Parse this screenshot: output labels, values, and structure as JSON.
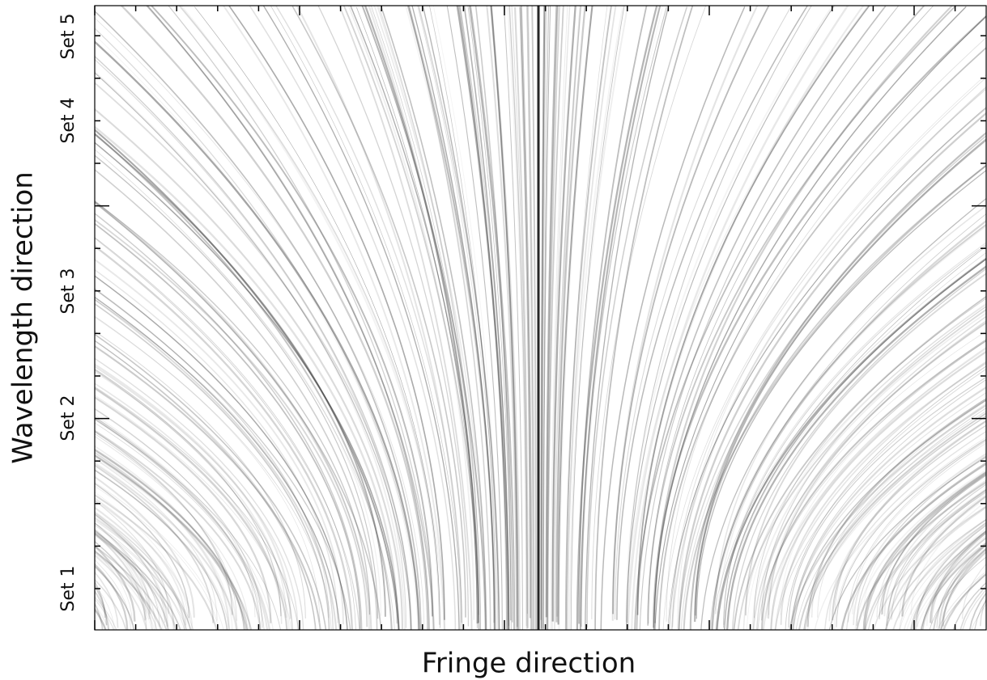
{
  "chart_data": {
    "type": "image",
    "xlabel": "Fringe direction",
    "ylabel": "Wavelength direction",
    "categories": [
      "Set 1",
      "Set 2",
      "Set 3",
      "Set 4",
      "Set 5"
    ]
  }
}
